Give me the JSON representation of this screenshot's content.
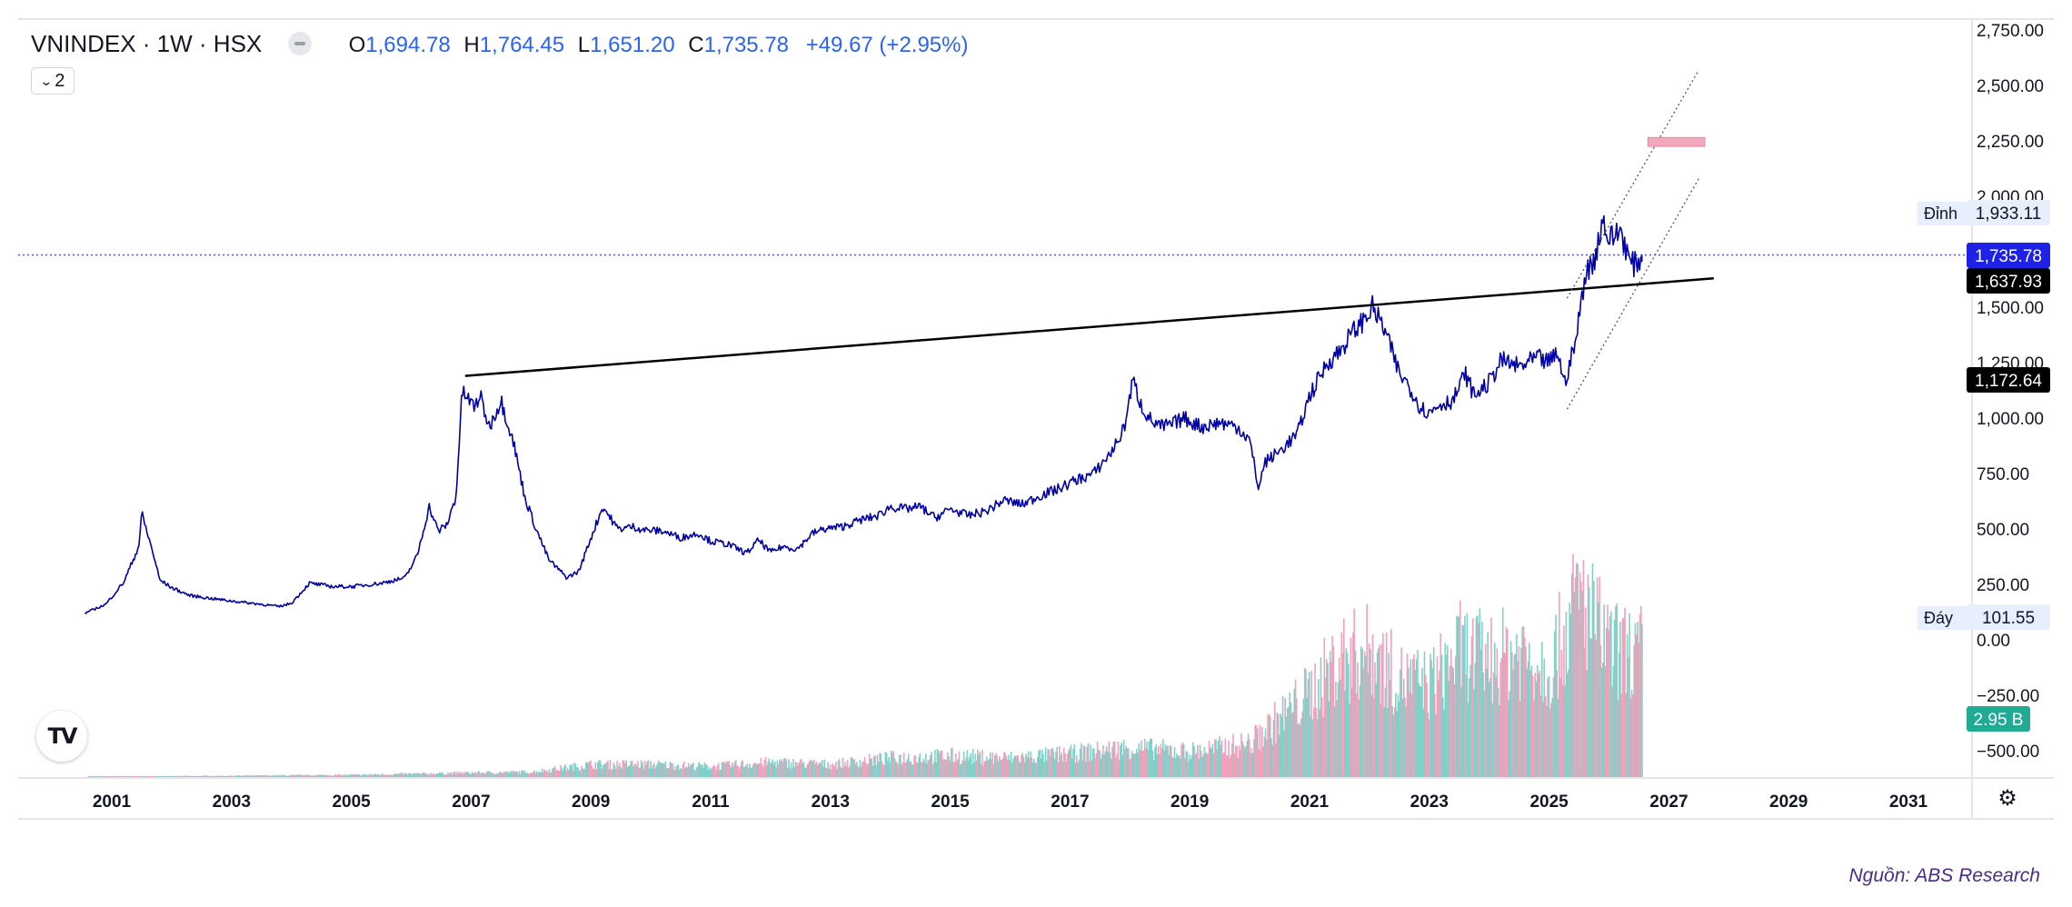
{
  "header": {
    "symbol": "VNINDEX · 1W · HSX",
    "open_label": "O",
    "open_value": "1,694.78",
    "high_label": "H",
    "high_value": "1,764.45",
    "low_label": "L",
    "low_value": "1,651.20",
    "close_label": "C",
    "close_value": "1,735.78",
    "change": "+49.67 (+2.95%)"
  },
  "collapse_button": {
    "label": "2"
  },
  "source": "Nguồn: ABS Research",
  "icons": {
    "logo": "tradingview-logo-icon",
    "settings": "gear-icon",
    "collapse": "chevron-down-icon"
  },
  "colors": {
    "price_line": "#0000a8",
    "trend_line": "#000000",
    "volume_up": "#7fd1c9",
    "volume_down": "#f2a1bb",
    "last_price_badge": "#1e22e6",
    "volume_badge": "#22ab94",
    "target_zone": "#f4a8bd",
    "current_price_line": "#4a57e8"
  },
  "chart_data": {
    "type": "line",
    "title": "VNINDEX · 1W · HSX",
    "xlabel": "",
    "ylabel": "",
    "x_ticks": [
      "2001",
      "2003",
      "2005",
      "2007",
      "2009",
      "2011",
      "2013",
      "2015",
      "2017",
      "2019",
      "2021",
      "2023",
      "2025",
      "2027",
      "2029",
      "2031"
    ],
    "y_ticks": [
      "2,750.00",
      "2,500.00",
      "2,250.00",
      "2,000.00",
      "1,750.00",
      "1,500.00",
      "1,250.00",
      "1,000.00",
      "750.00",
      "500.00",
      "250.00",
      "0.00",
      "−250.00",
      "−500.00"
    ],
    "ylim": [
      -600,
      2800
    ],
    "xlim": [
      2000.2,
      2032.0
    ],
    "grid": false,
    "series": [
      {
        "x": [
          2000.55,
          2000.9,
          2001.2,
          2001.45,
          2001.5,
          2001.7,
          2001.8,
          2002.0,
          2002.3,
          2002.7,
          2003.0,
          2003.5,
          2003.8,
          2004.0,
          2004.3,
          2004.7,
          2005.0,
          2005.5,
          2005.9,
          2006.1,
          2006.3,
          2006.45,
          2006.6,
          2006.75,
          2006.85,
          2007.05,
          2007.15,
          2007.3,
          2007.5,
          2007.7,
          2007.9,
          2008.1,
          2008.3,
          2008.6,
          2008.8,
          2009.0,
          2009.2,
          2009.45,
          2009.7,
          2009.9,
          2010.2,
          2010.5,
          2010.8,
          2011.0,
          2011.3,
          2011.6,
          2011.8,
          2012.0,
          2012.2,
          2012.45,
          2012.7,
          2012.9,
          2013.2,
          2013.5,
          2013.8,
          2014.0,
          2014.25,
          2014.5,
          2014.75,
          2015.0,
          2015.3,
          2015.6,
          2015.9,
          2016.2,
          2016.5,
          2016.8,
          2017.1,
          2017.4,
          2017.7,
          2017.9,
          2018.05,
          2018.2,
          2018.35,
          2018.5,
          2018.7,
          2018.9,
          2019.2,
          2019.5,
          2019.8,
          2020.0,
          2020.15,
          2020.25,
          2020.5,
          2020.8,
          2021.0,
          2021.3,
          2021.5,
          2021.7,
          2021.9,
          2022.05,
          2022.25,
          2022.5,
          2022.65,
          2022.85,
          2023.0,
          2023.15,
          2023.4,
          2023.6,
          2023.75,
          2024.0,
          2024.2,
          2024.5,
          2024.8,
          2025.0,
          2025.15,
          2025.25,
          2025.45,
          2025.6,
          2025.75,
          2025.9,
          2026.0,
          2026.2,
          2026.35,
          2026.45,
          2026.55
        ],
        "values": [
          120,
          160,
          260,
          420,
          570,
          380,
          270,
          235,
          200,
          185,
          175,
          160,
          150,
          165,
          255,
          240,
          240,
          255,
          280,
          380,
          600,
          490,
          520,
          650,
          1120,
          1050,
          1100,
          960,
          1080,
          900,
          640,
          490,
          360,
          280,
          310,
          460,
          600,
          500,
          510,
          495,
          490,
          460,
          480,
          445,
          430,
          390,
          450,
          395,
          420,
          410,
          480,
          500,
          510,
          540,
          560,
          600,
          590,
          600,
          550,
          590,
          560,
          580,
          630,
          610,
          650,
          680,
          720,
          750,
          850,
          950,
          1170,
          1050,
          990,
          960,
          970,
          1000,
          960,
          980,
          960,
          900,
          680,
          800,
          850,
          930,
          1100,
          1250,
          1300,
          1380,
          1440,
          1500,
          1400,
          1200,
          1150,
          1050,
          1020,
          1060,
          1080,
          1200,
          1100,
          1160,
          1260,
          1230,
          1270,
          1250,
          1300,
          1150,
          1350,
          1650,
          1710,
          1900,
          1800,
          1850,
          1700,
          1690,
          1735.78
        ]
      }
    ],
    "volume": {
      "label": "2.95 B",
      "x": [
        2001,
        2003,
        2005,
        2007,
        2008,
        2009,
        2010,
        2011,
        2012,
        2013,
        2014,
        2015,
        2016,
        2017,
        2018,
        2019,
        2020,
        2021,
        2021.5,
        2022,
        2022.5,
        2023,
        2023.5,
        2024,
        2024.5,
        2025,
        2025.5,
        2026,
        2026.5
      ],
      "values_b": [
        0.01,
        0.03,
        0.05,
        0.1,
        0.12,
        0.3,
        0.3,
        0.25,
        0.35,
        0.3,
        0.45,
        0.5,
        0.45,
        0.55,
        0.7,
        0.6,
        0.8,
        2.0,
        2.8,
        3.0,
        2.3,
        2.2,
        3.0,
        2.8,
        3.0,
        2.6,
        4.3,
        3.0,
        2.95
      ]
    },
    "trend_line": {
      "x": [
        2006.9,
        2027.75
      ],
      "y": [
        1190,
        1630
      ]
    },
    "channel": {
      "upper": {
        "x": [
          2025.3,
          2027.5
        ],
        "y": [
          1540,
          2570
        ]
      },
      "lower": {
        "x": [
          2025.3,
          2027.5
        ],
        "y": [
          1040,
          2080
        ]
      }
    },
    "target_zone": {
      "x": [
        2026.65,
        2027.6
      ],
      "y": [
        2225,
        2265
      ]
    },
    "price_labels": [
      {
        "label": "Đỉnh",
        "value": "1,933.11"
      },
      {
        "label": "",
        "value": "1,735.78"
      },
      {
        "label": "",
        "value": "1,637.93"
      },
      {
        "label": "",
        "value": "1,172.64"
      },
      {
        "label": "Đáy",
        "value": "101.55"
      }
    ]
  }
}
